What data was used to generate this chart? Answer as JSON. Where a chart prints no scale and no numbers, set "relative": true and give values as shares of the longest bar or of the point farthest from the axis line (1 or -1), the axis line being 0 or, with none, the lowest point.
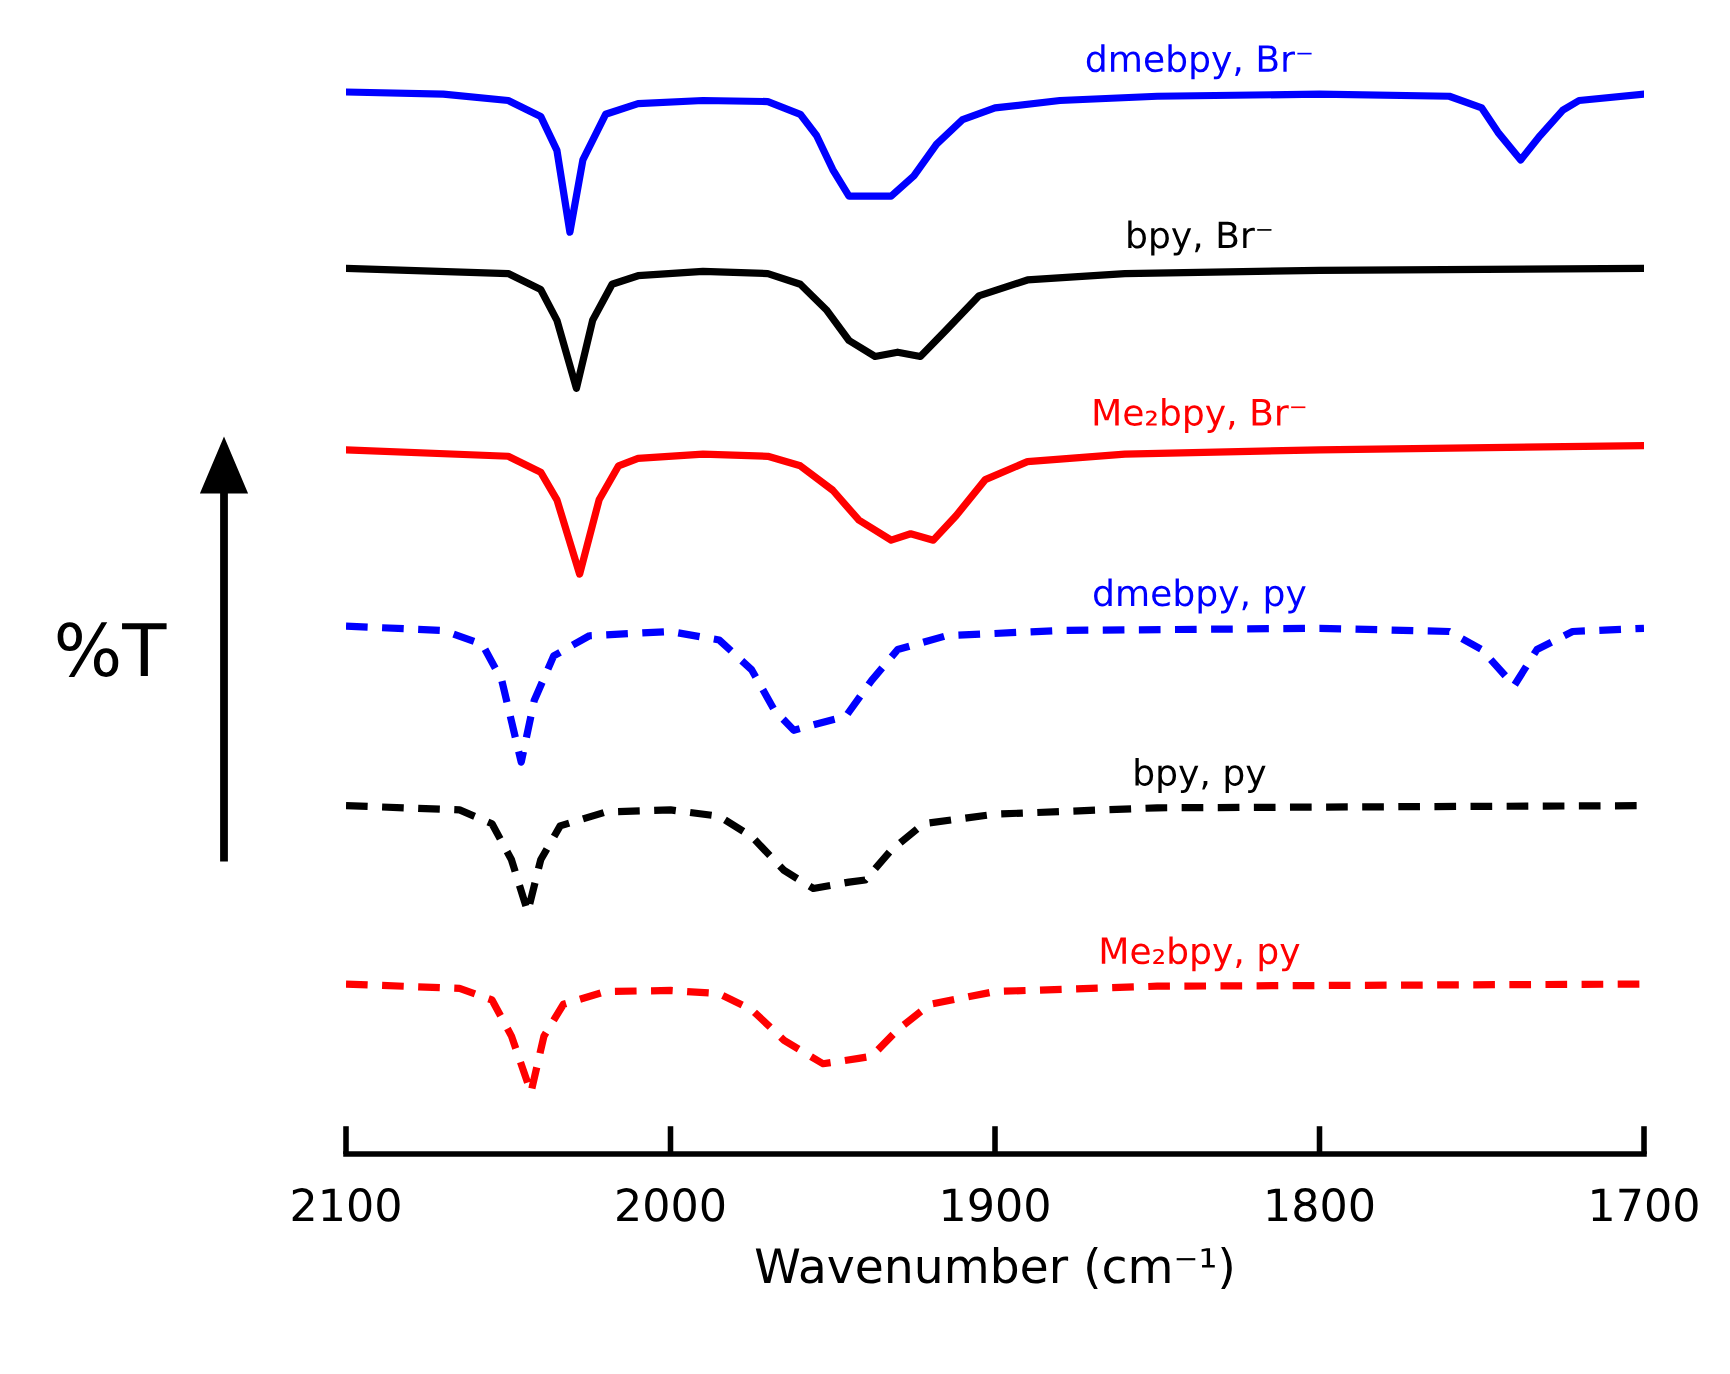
{
  "chart_data": {
    "type": "line",
    "relative": true,
    "xlabel": "Wavenumber (cm⁻¹)",
    "ylabel": "%T",
    "xlim": [
      2100,
      1700
    ],
    "xticks": [
      2100,
      2000,
      1900,
      1800,
      1700
    ],
    "grid": false,
    "legend": false,
    "marker": "none",
    "series": [
      {
        "name": "dmebpy, Br⁻",
        "color": "#0000ff",
        "line_style": "solid",
        "x": [
          2100,
          2070,
          2050,
          2040,
          2035,
          2031,
          2027,
          2020,
          2010,
          1990,
          1970,
          1960,
          1955,
          1950,
          1945,
          1932,
          1925,
          1918,
          1910,
          1900,
          1880,
          1850,
          1800,
          1760,
          1750,
          1745,
          1738,
          1732,
          1725,
          1720,
          1700
        ],
        "values": [
          1.0,
          0.998,
          0.992,
          0.977,
          0.945,
          0.868,
          0.936,
          0.979,
          0.989,
          0.992,
          0.991,
          0.979,
          0.959,
          0.927,
          0.902,
          0.902,
          0.921,
          0.951,
          0.974,
          0.985,
          0.992,
          0.996,
          0.998,
          0.996,
          0.985,
          0.962,
          0.936,
          0.959,
          0.983,
          0.992,
          0.998
        ]
      },
      {
        "name": "bpy, Br⁻",
        "color": "#000000",
        "line_style": "solid",
        "x": [
          2100,
          2050,
          2040,
          2035,
          2029,
          2024,
          2018,
          2010,
          1990,
          1970,
          1960,
          1952,
          1945,
          1937,
          1930,
          1923,
          1915,
          1905,
          1890,
          1860,
          1800,
          1700
        ],
        "values": [
          0.834,
          0.829,
          0.814,
          0.785,
          0.721,
          0.785,
          0.819,
          0.827,
          0.831,
          0.829,
          0.819,
          0.795,
          0.766,
          0.751,
          0.755,
          0.751,
          0.776,
          0.808,
          0.823,
          0.829,
          0.832,
          0.834
        ]
      },
      {
        "name": "Me₂bpy, Br⁻",
        "color": "#ff0000",
        "line_style": "solid",
        "x": [
          2100,
          2050,
          2040,
          2035,
          2028,
          2022,
          2016,
          2010,
          1990,
          1970,
          1960,
          1950,
          1942,
          1932,
          1926,
          1919,
          1912,
          1903,
          1890,
          1860,
          1800,
          1700
        ],
        "values": [
          0.663,
          0.657,
          0.642,
          0.616,
          0.546,
          0.616,
          0.648,
          0.655,
          0.659,
          0.657,
          0.648,
          0.625,
          0.597,
          0.578,
          0.584,
          0.578,
          0.601,
          0.635,
          0.652,
          0.659,
          0.663,
          0.667
        ]
      },
      {
        "name": "dmebpy, py",
        "color": "#0000ff",
        "line_style": "dashed",
        "x": [
          2100,
          2070,
          2058,
          2052,
          2046,
          2042,
          2036,
          2025,
          2000,
          1985,
          1975,
          1968,
          1962,
          1950,
          1946,
          1938,
          1930,
          1915,
          1880,
          1800,
          1760,
          1750,
          1740,
          1733,
          1722,
          1700
        ],
        "values": [
          0.497,
          0.493,
          0.48,
          0.446,
          0.369,
          0.427,
          0.469,
          0.488,
          0.492,
          0.484,
          0.456,
          0.418,
          0.399,
          0.409,
          0.412,
          0.446,
          0.475,
          0.488,
          0.493,
          0.495,
          0.492,
          0.475,
          0.441,
          0.475,
          0.492,
          0.495
        ]
      },
      {
        "name": "bpy, py",
        "color": "#000000",
        "line_style": "dashed",
        "x": [
          2100,
          2065,
          2055,
          2049,
          2044,
          2040,
          2034,
          2020,
          2000,
          1985,
          1975,
          1965,
          1956,
          1945,
          1940,
          1932,
          1922,
          1900,
          1850,
          1700
        ],
        "values": [
          0.328,
          0.324,
          0.311,
          0.277,
          0.228,
          0.277,
          0.309,
          0.322,
          0.324,
          0.318,
          0.299,
          0.267,
          0.25,
          0.256,
          0.258,
          0.286,
          0.311,
          0.32,
          0.326,
          0.328
        ]
      },
      {
        "name": "Me₂bpy, py",
        "color": "#ff0000",
        "line_style": "dashed",
        "x": [
          2100,
          2065,
          2055,
          2049,
          2043,
          2039,
          2033,
          2020,
          2000,
          1985,
          1975,
          1965,
          1953,
          1942,
          1938,
          1930,
          1920,
          1900,
          1850,
          1700
        ],
        "values": [
          0.16,
          0.156,
          0.145,
          0.111,
          0.058,
          0.111,
          0.141,
          0.153,
          0.154,
          0.151,
          0.136,
          0.107,
          0.085,
          0.09,
          0.092,
          0.117,
          0.141,
          0.153,
          0.158,
          0.16
        ]
      }
    ]
  }
}
